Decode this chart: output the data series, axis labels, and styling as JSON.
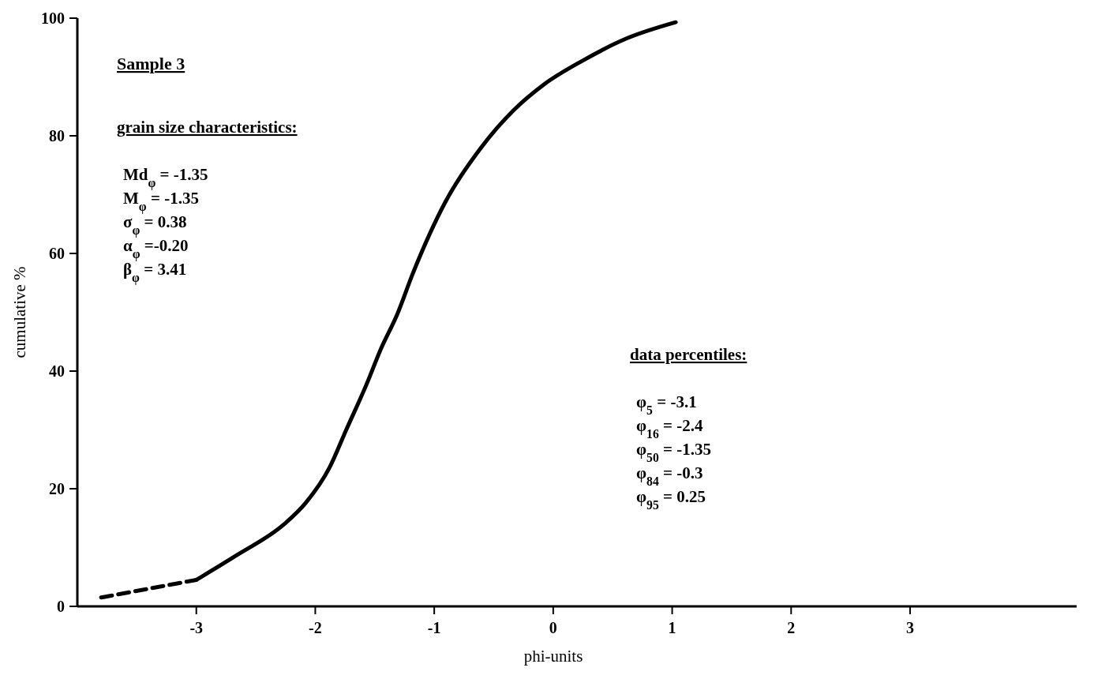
{
  "chart_data": {
    "type": "line",
    "title": "Sample 3",
    "xlabel": "phi-units",
    "ylabel": "cumulative %",
    "xlim": [
      -4,
      4.4
    ],
    "ylim": [
      0,
      100
    ],
    "xticks": [
      -3,
      -2,
      -1,
      0,
      1,
      2,
      3
    ],
    "yticks": [
      0,
      20,
      40,
      60,
      80,
      100
    ],
    "grid": false,
    "series": [
      {
        "color": "#000000",
        "line_style": "dashed",
        "x": [
          -3.8,
          -3.4,
          -3.0
        ],
        "values": [
          1.5,
          3.0,
          4.5
        ]
      },
      {
        "color": "#000000",
        "line_style": "solid",
        "x": [
          -3.0,
          -2.66,
          -2.26,
          -2.08,
          -1.88,
          -1.74,
          -1.57,
          -1.45,
          -1.31,
          -1.18,
          -0.9,
          -0.61,
          -0.33,
          -0.08,
          0.25,
          0.6,
          1.03
        ],
        "values": [
          4.5,
          8.7,
          14,
          17.6,
          23.6,
          30,
          37.7,
          43.7,
          49.7,
          56.6,
          69,
          77.9,
          84.4,
          88.7,
          92.8,
          96.4,
          99.3
        ]
      }
    ],
    "annotations": [
      "grain size characteristics:",
      "Md$_{φ}$ = -1.35",
      "M$_{φ}$ = -1.35",
      "σ$_{φ}$ = 0.38",
      "α$_{φ}$ =-0.20",
      "β$_{φ}$ = 3.41",
      "data percentiles:",
      "φ$_{5}$ = -3.1",
      "φ$_{16}$ = -2.4",
      "φ$_{50}$ = -1.35",
      "φ$_{84}$ = -0.3",
      "φ$_{95}$ = 0.25"
    ]
  }
}
